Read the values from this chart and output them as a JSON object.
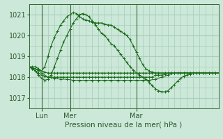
{
  "title": "Pression niveau de la mer( hPa )",
  "ylabel_ticks": [
    1017,
    1018,
    1019,
    1020,
    1021
  ],
  "ylim": [
    1016.5,
    1021.5
  ],
  "xlim": [
    0,
    120
  ],
  "background_color": "#cce8d8",
  "grid_color": "#a8ccba",
  "line_color": "#1a6b1a",
  "tick_color": "#336633",
  "label_color": "#2d5a2d",
  "day_labels": [
    "Lun",
    "Mer",
    "Mar"
  ],
  "day_positions": [
    8,
    26,
    68
  ],
  "series": {
    "line_flat1": {
      "x": [
        0,
        2,
        4,
        6,
        8,
        10,
        12,
        14,
        16,
        18,
        20,
        22,
        24,
        26,
        28,
        30,
        32,
        34,
        36,
        38,
        40,
        42,
        44,
        46,
        48,
        50,
        52,
        54,
        56,
        58,
        60,
        62,
        64,
        66,
        68,
        70,
        72,
        74,
        76,
        78,
        80,
        82,
        84,
        86,
        88,
        90,
        92,
        94,
        96,
        98,
        100,
        102,
        104,
        106,
        108,
        110,
        112,
        114,
        116,
        118,
        120
      ],
      "y": [
        1018.5,
        1018.45,
        1018.4,
        1018.35,
        1018.3,
        1018.25,
        1018.2,
        1018.2,
        1018.2,
        1018.2,
        1018.2,
        1018.2,
        1018.2,
        1018.2,
        1018.2,
        1018.2,
        1018.2,
        1018.2,
        1018.2,
        1018.2,
        1018.2,
        1018.2,
        1018.2,
        1018.2,
        1018.2,
        1018.2,
        1018.2,
        1018.2,
        1018.2,
        1018.2,
        1018.2,
        1018.2,
        1018.2,
        1018.2,
        1018.2,
        1018.2,
        1018.2,
        1018.2,
        1018.2,
        1018.2,
        1018.2,
        1018.2,
        1018.2,
        1018.2,
        1018.2,
        1018.2,
        1018.2,
        1018.2,
        1018.2,
        1018.2,
        1018.2,
        1018.2,
        1018.2,
        1018.2,
        1018.2,
        1018.2,
        1018.2,
        1018.2,
        1018.2,
        1018.2,
        1018.2
      ]
    },
    "line_flat2": {
      "x": [
        0,
        2,
        4,
        6,
        8,
        10,
        12,
        14,
        16,
        18,
        20,
        22,
        24,
        26,
        28,
        30,
        32,
        34,
        36,
        38,
        40,
        42,
        44,
        46,
        48,
        50,
        52,
        54,
        56,
        58,
        60,
        62,
        64,
        66,
        68,
        70,
        72,
        74,
        76,
        78,
        80,
        82,
        84,
        86,
        88,
        90,
        92,
        94,
        96,
        98,
        100,
        102,
        104,
        106,
        108,
        110,
        112,
        114,
        116,
        118,
        120
      ],
      "y": [
        1018.5,
        1018.4,
        1018.3,
        1018.2,
        1018.1,
        1018.05,
        1018.0,
        1018.0,
        1018.0,
        1018.0,
        1018.0,
        1018.0,
        1018.0,
        1018.0,
        1018.0,
        1018.0,
        1018.0,
        1018.0,
        1018.0,
        1018.0,
        1018.0,
        1018.0,
        1018.0,
        1018.0,
        1018.0,
        1018.0,
        1018.0,
        1018.0,
        1018.0,
        1018.0,
        1018.0,
        1018.0,
        1018.0,
        1018.0,
        1018.0,
        1018.0,
        1018.0,
        1018.0,
        1018.0,
        1018.0,
        1018.1,
        1018.1,
        1018.1,
        1018.15,
        1018.2,
        1018.2,
        1018.2,
        1018.2,
        1018.2,
        1018.2,
        1018.2,
        1018.2,
        1018.2,
        1018.2,
        1018.2,
        1018.2,
        1018.2,
        1018.2,
        1018.2,
        1018.2,
        1018.2
      ]
    },
    "line_flat3": {
      "x": [
        0,
        4,
        8,
        12,
        16,
        20,
        24,
        28,
        32,
        36,
        40,
        44,
        48,
        52,
        56,
        60,
        64,
        68,
        72,
        76,
        80,
        84,
        88,
        92,
        96,
        100,
        104,
        108,
        112,
        116,
        120
      ],
      "y": [
        1018.5,
        1018.4,
        1018.2,
        1018.0,
        1017.95,
        1017.9,
        1017.9,
        1017.85,
        1017.85,
        1017.85,
        1017.85,
        1017.85,
        1017.85,
        1017.85,
        1017.85,
        1017.85,
        1017.85,
        1017.85,
        1017.85,
        1017.85,
        1017.9,
        1018.0,
        1018.1,
        1018.2,
        1018.2,
        1018.2,
        1018.2,
        1018.2,
        1018.2,
        1018.2,
        1018.2
      ]
    },
    "line_peak1": {
      "x": [
        0,
        2,
        4,
        6,
        8,
        10,
        12,
        14,
        16,
        18,
        20,
        22,
        24,
        26,
        28,
        30,
        32,
        34,
        36,
        38,
        40,
        42,
        44,
        46,
        48,
        50,
        52,
        54,
        56,
        58,
        60,
        62,
        64,
        66,
        68,
        70,
        72,
        74,
        76,
        78,
        80,
        82,
        84,
        86,
        88,
        90,
        92,
        94,
        96,
        98,
        100,
        102,
        104,
        106,
        108,
        110,
        112,
        114,
        116,
        118,
        120
      ],
      "y": [
        1018.5,
        1018.5,
        1018.5,
        1018.4,
        1018.3,
        1018.5,
        1019.0,
        1019.5,
        1019.9,
        1020.2,
        1020.5,
        1020.7,
        1020.9,
        1021.0,
        1021.1,
        1021.05,
        1020.9,
        1020.8,
        1020.75,
        1020.7,
        1020.65,
        1020.6,
        1020.6,
        1020.6,
        1020.55,
        1020.5,
        1020.5,
        1020.4,
        1020.3,
        1020.2,
        1020.1,
        1020.0,
        1019.8,
        1019.5,
        1019.2,
        1018.9,
        1018.6,
        1018.4,
        1018.3,
        1018.25,
        1018.2,
        1018.2,
        1018.2,
        1018.2,
        1018.2,
        1018.2,
        1018.2,
        1018.2,
        1018.2,
        1018.2,
        1018.2,
        1018.2,
        1018.2,
        1018.2,
        1018.2,
        1018.2,
        1018.2,
        1018.2,
        1018.2,
        1018.2,
        1018.2
      ]
    },
    "line_peak2": {
      "x": [
        0,
        2,
        4,
        6,
        8,
        10,
        12,
        14,
        16,
        18,
        20,
        22,
        24,
        26,
        28,
        30,
        32,
        34,
        36,
        38,
        40,
        42,
        44,
        46,
        48,
        50,
        52,
        54,
        56,
        58,
        60,
        62,
        64,
        66,
        68,
        70,
        72,
        74,
        76,
        78,
        80,
        82,
        84,
        86,
        88,
        90,
        92,
        94,
        96,
        98,
        100,
        102,
        104,
        106,
        108,
        110,
        112,
        114,
        116,
        118,
        120
      ],
      "y": [
        1018.5,
        1018.4,
        1018.3,
        1018.1,
        1017.95,
        1017.85,
        1017.9,
        1018.1,
        1018.5,
        1018.9,
        1019.3,
        1019.7,
        1020.0,
        1020.3,
        1020.6,
        1020.8,
        1021.0,
        1021.05,
        1021.0,
        1020.9,
        1020.7,
        1020.5,
        1020.3,
        1020.1,
        1020.0,
        1019.8,
        1019.6,
        1019.5,
        1019.3,
        1019.1,
        1018.9,
        1018.7,
        1018.5,
        1018.35,
        1018.2,
        1018.1,
        1018.0,
        1017.9,
        1017.75,
        1017.6,
        1017.45,
        1017.35,
        1017.3,
        1017.3,
        1017.35,
        1017.5,
        1017.65,
        1017.8,
        1017.95,
        1018.05,
        1018.1,
        1018.15,
        1018.2,
        1018.2,
        1018.2,
        1018.2,
        1018.2,
        1018.2,
        1018.2,
        1018.2,
        1018.2
      ]
    }
  }
}
